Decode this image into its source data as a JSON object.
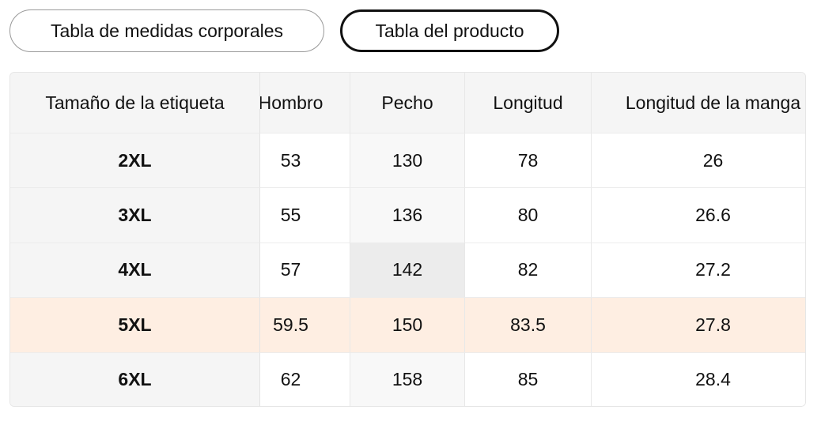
{
  "tabs": [
    "Tabla de medidas corporales",
    "Tabla del producto"
  ],
  "table": {
    "headers": [
      "Tamaño de la etiqueta",
      "Hombro",
      "Pecho",
      "Longitud",
      "Longitud de la manga"
    ],
    "rows": [
      [
        "2XL",
        53,
        130,
        78,
        26
      ],
      [
        "3XL",
        55,
        136,
        80,
        26.6
      ],
      [
        "4XL",
        57,
        142,
        82,
        27.2
      ],
      [
        "5XL",
        59.5,
        150,
        83.5,
        27.8
      ],
      [
        "6XL",
        62,
        158,
        85,
        28.4
      ]
    ]
  }
}
